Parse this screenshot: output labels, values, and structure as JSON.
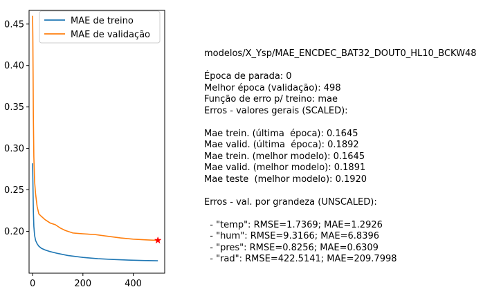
{
  "chart_data": {
    "type": "line",
    "title": "",
    "xlabel": "",
    "ylabel": "",
    "xlim": [
      -14,
      525
    ],
    "ylim": [
      0.1495,
      0.4665
    ],
    "xticks": [
      0,
      200,
      400
    ],
    "yticks": [
      0.2,
      0.25,
      0.3,
      0.35,
      0.4,
      0.45
    ],
    "ytick_labels": [
      "0.20",
      "0.25",
      "0.30",
      "0.35",
      "0.40",
      "0.45"
    ],
    "grid": false,
    "legend": "top-left",
    "series": [
      {
        "name": "MAE de treino",
        "color": "#1f77b4",
        "x": [
          0,
          1,
          2,
          3,
          5,
          8,
          12,
          18,
          25,
          35,
          50,
          70,
          100,
          140,
          200,
          260,
          320,
          380,
          440,
          498
        ],
        "y": [
          0.282,
          0.265,
          0.245,
          0.225,
          0.206,
          0.195,
          0.189,
          0.185,
          0.182,
          0.1795,
          0.1775,
          0.1755,
          0.1733,
          0.1708,
          0.1685,
          0.167,
          0.166,
          0.1653,
          0.1648,
          0.1645
        ]
      },
      {
        "name": "MAE de validação",
        "color": "#ff7f0e",
        "x": [
          0,
          1,
          2,
          3,
          5,
          8,
          12,
          18,
          25,
          35,
          50,
          70,
          90,
          110,
          130,
          160,
          200,
          250,
          300,
          350,
          400,
          450,
          498
        ],
        "y": [
          0.46,
          0.435,
          0.39,
          0.34,
          0.29,
          0.26,
          0.245,
          0.23,
          0.221,
          0.218,
          0.214,
          0.21,
          0.208,
          0.204,
          0.201,
          0.198,
          0.197,
          0.196,
          0.194,
          0.192,
          0.1905,
          0.1897,
          0.1891
        ]
      }
    ],
    "marker": {
      "x": 498,
      "y": 0.1891,
      "color": "#ff0000",
      "shape": "star"
    }
  },
  "info": {
    "lines": [
      "modelos/X_Ysp/MAE_ENCDEC_BAT32_DOUT0_HL10_BCKW48",
      "",
      "Época de parada: 0",
      "Melhor época (validação): 498",
      "Função de erro p/ treino: mae",
      "Erros - valores gerais (SCALED):",
      "",
      "Mae trein. (última  época): 0.1645",
      "Mae valid. (última  época): 0.1892",
      "Mae trein. (melhor modelo): 0.1645",
      "Mae valid. (melhor modelo): 0.1891",
      "Mae teste  (melhor modelo): 0.1920",
      "",
      "Erros - val. por grandeza (UNSCALED):",
      "",
      "  - \"temp\": RMSE=1.7369; MAE=1.2926",
      "  - \"hum\": RMSE=9.3166; MAE=6.8396",
      "  - \"pres\": RMSE=0.8256; MAE=0.6309",
      "  - \"rad\": RMSE=422.5141; MAE=209.7998"
    ]
  }
}
